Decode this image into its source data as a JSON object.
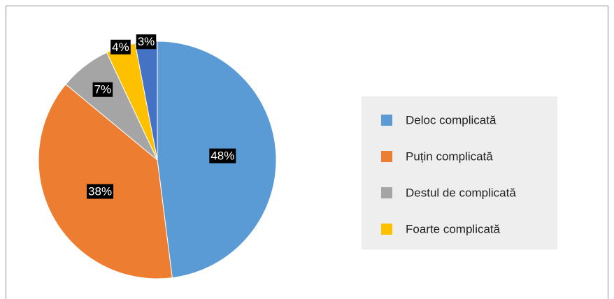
{
  "chart_data": {
    "type": "pie",
    "categories": [
      "Deloc complicată",
      "Puțin complicată",
      "Destul de complicată",
      "Foarte complicată",
      null
    ],
    "values": [
      48,
      38,
      7,
      4,
      3
    ],
    "value_labels": [
      "48%",
      "38%",
      "7%",
      "4%",
      "3%"
    ],
    "colors": [
      "#5b9bd5",
      "#ed7d31",
      "#a5a5a5",
      "#ffc000",
      "#4472c4"
    ],
    "legend": "right"
  }
}
